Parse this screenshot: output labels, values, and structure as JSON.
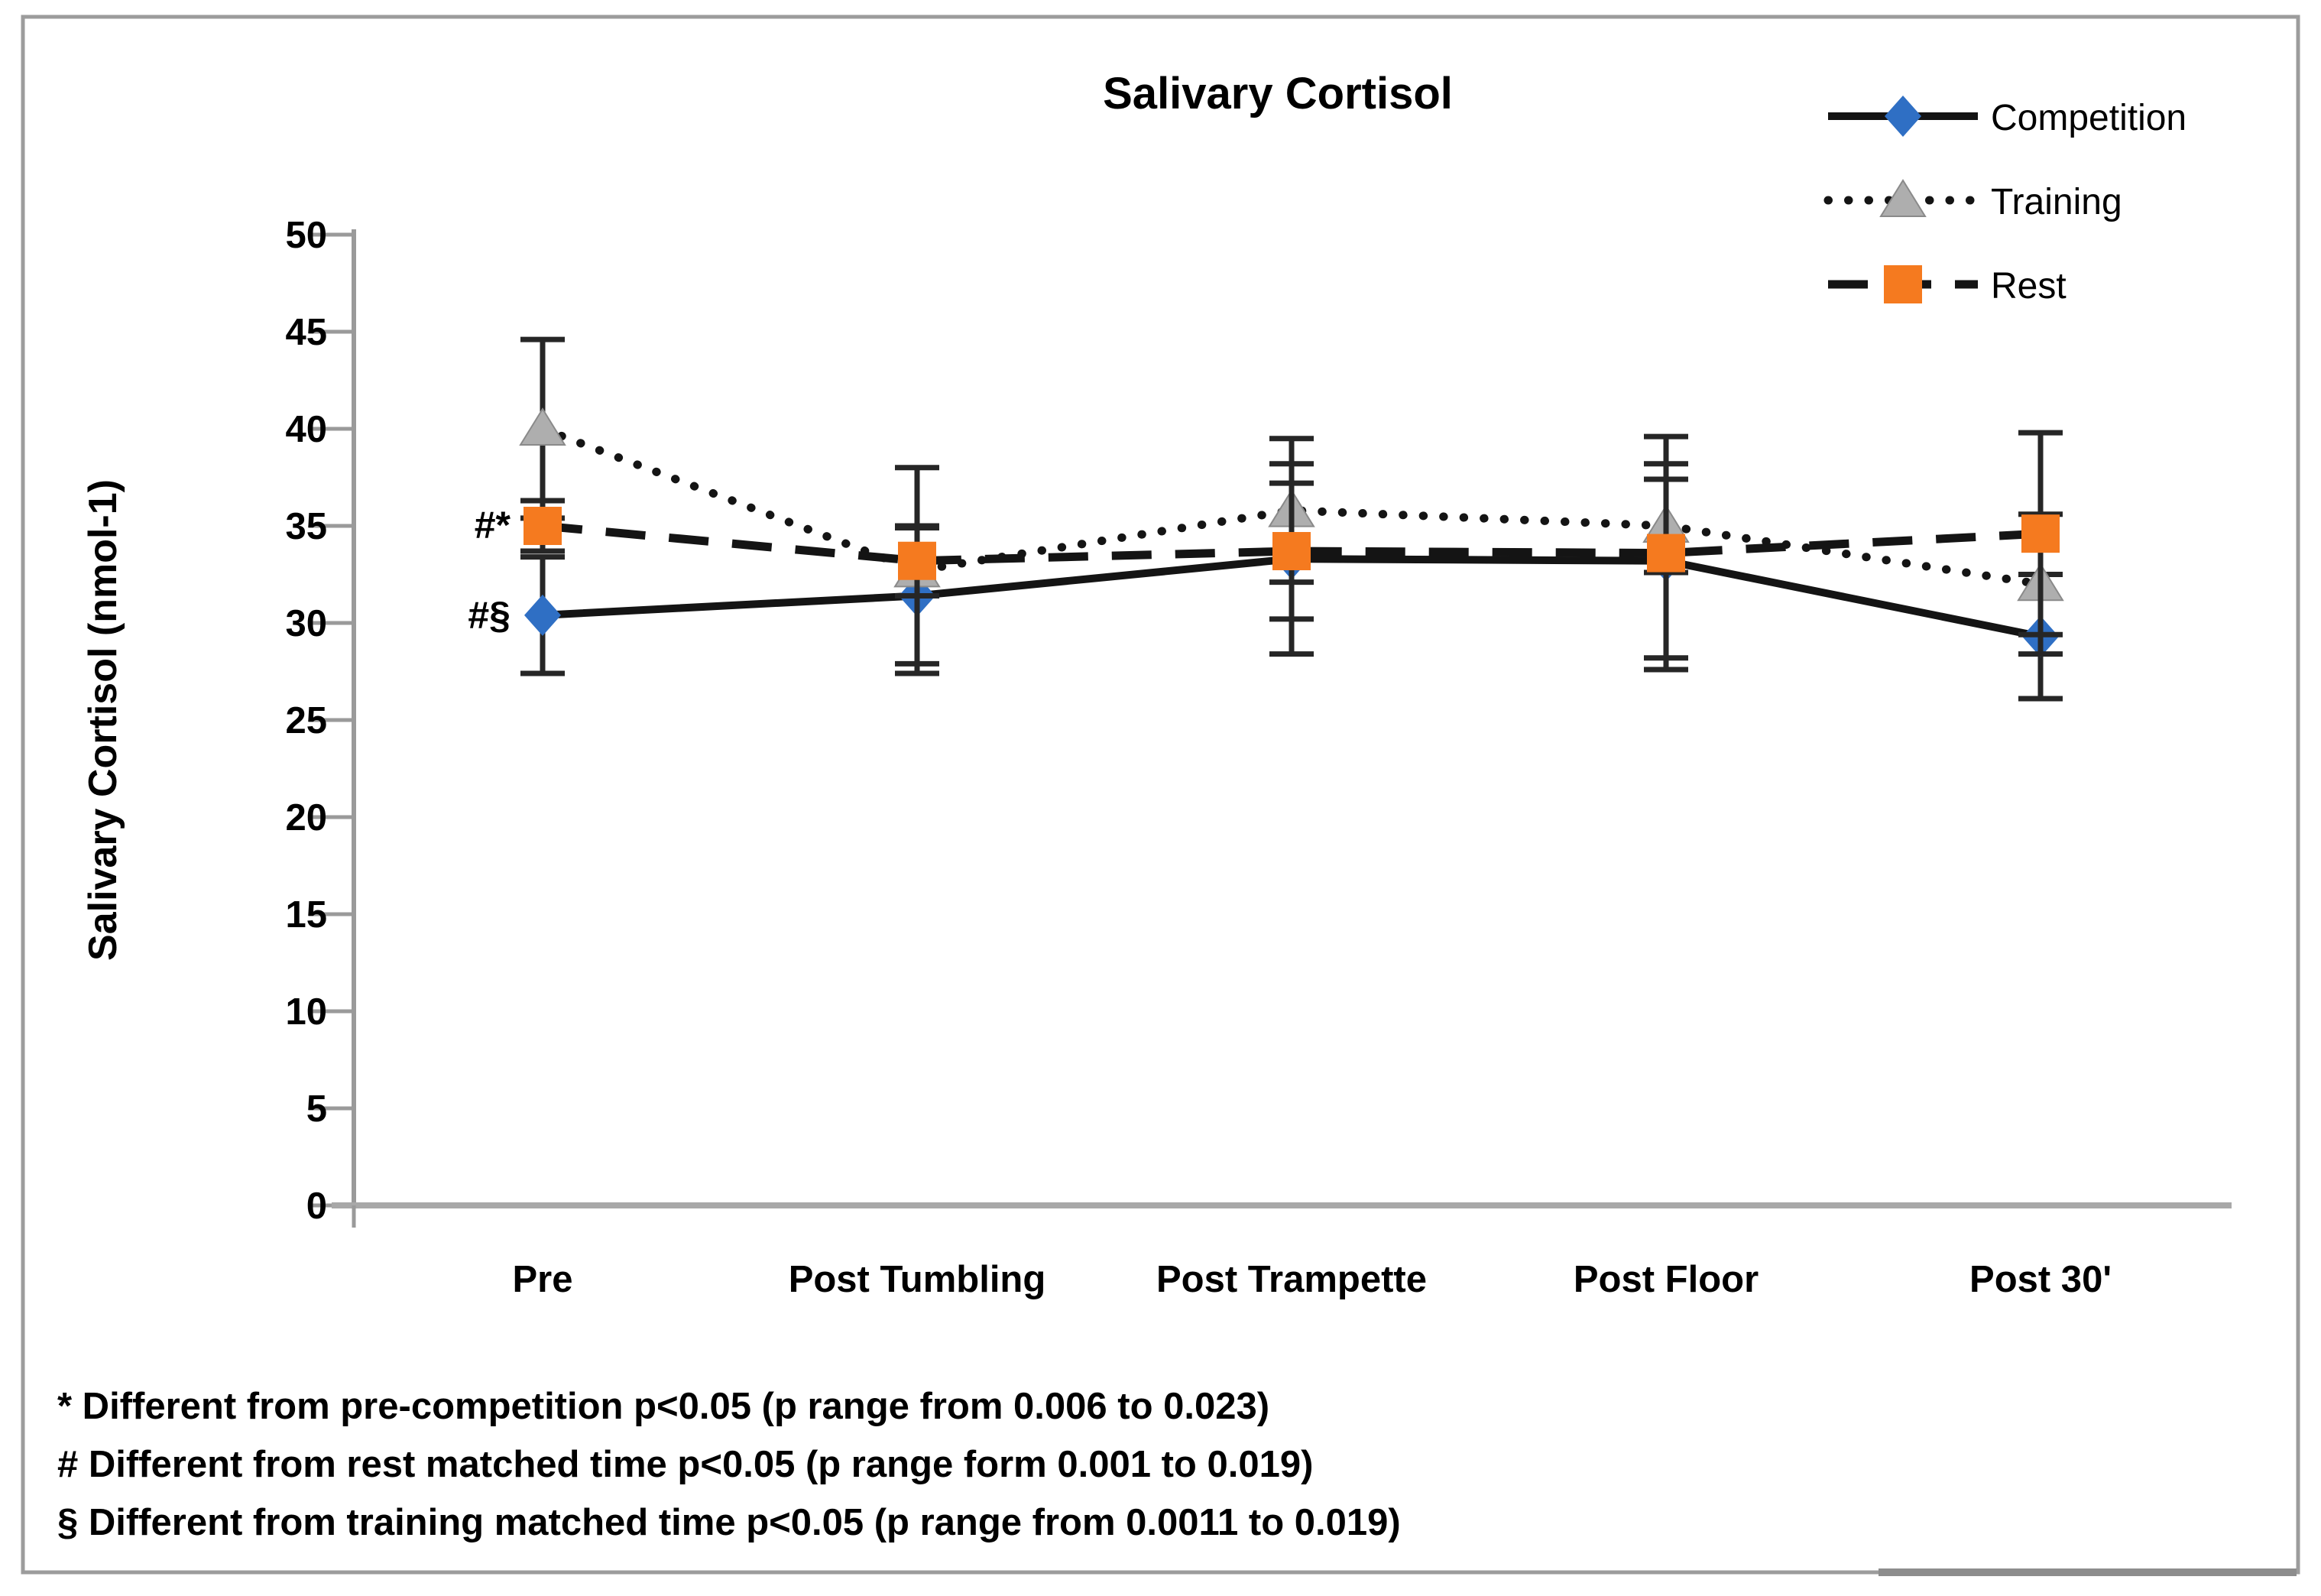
{
  "figure": {
    "title": "Salivary Cortisol",
    "y_axis_label": "Salivary Cortisol (nmol-1)"
  },
  "legend": {
    "position": "top-right",
    "items": [
      {
        "label": "Competition",
        "marker_icon": "blue-diamond-marker",
        "line_style": "solid"
      },
      {
        "label": "Training",
        "marker_icon": "gray-triangle-marker",
        "line_style": "dotted"
      },
      {
        "label": "Rest",
        "marker_icon": "orange-square-marker",
        "line_style": "dashed"
      }
    ]
  },
  "annotations": {
    "pre_rest": "#*",
    "pre_competition": "#§"
  },
  "footnotes": {
    "lines": [
      "* Different from pre-competition p<0.05 (p range from 0.006 to 0.023)",
      "# Different from rest matched time p<0.05 (p range form 0.001 to 0.019)",
      "§ Different from training matched time p<0.05 (p range from 0.0011 to  0.019)"
    ]
  },
  "chart_data": {
    "type": "line",
    "title": "Salivary Cortisol",
    "xlabel": "",
    "ylabel": "Salivary Cortisol (nmol-1)",
    "ylim": [
      0,
      50
    ],
    "ytick_step": 5,
    "y_ticks": [
      0,
      5,
      10,
      15,
      20,
      25,
      30,
      35,
      40,
      45,
      50
    ],
    "grid": false,
    "legend_position": "top-right",
    "categories": [
      "Pre",
      "Post Tumbling",
      "Post Trampette",
      "Post Floor",
      "Post 30'"
    ],
    "series": [
      {
        "name": "Competition",
        "line_style": "solid",
        "marker": "diamond",
        "marker_color": "#2f6fc4",
        "line_color": "#141414",
        "values": [
          30.4,
          31.4,
          33.3,
          33.2,
          29.3
        ],
        "error": [
          3.0,
          3.5,
          4.9,
          5.0,
          3.2
        ]
      },
      {
        "name": "Training",
        "line_style": "dotted",
        "marker": "triangle",
        "marker_color": "#aeaeae",
        "line_color": "#141414",
        "values": [
          40.0,
          32.7,
          35.8,
          35.0,
          32.0
        ],
        "error": [
          4.6,
          5.3,
          3.7,
          2.4,
          3.6
        ]
      },
      {
        "name": "Rest",
        "line_style": "dashed",
        "marker": "square",
        "marker_color": "#f57a1f",
        "line_color": "#141414",
        "values": [
          35.0,
          33.2,
          33.7,
          33.6,
          34.6
        ],
        "error": [
          1.3,
          1.8,
          3.5,
          6.0,
          5.2
        ]
      }
    ],
    "point_annotations": [
      {
        "text": "#*",
        "category": "Pre",
        "series": "Rest",
        "value": 35.0
      },
      {
        "text": "#§",
        "category": "Pre",
        "series": "Competition",
        "value": 30.4
      }
    ]
  },
  "colors": {
    "axis": "#9a9a9a",
    "x_axis": "#a8a8a8",
    "error_bar": "#262626",
    "series_line": "#141414",
    "border": "#9c9c9c",
    "competition_marker": "#2f6fc4",
    "training_marker": "#aeaeae",
    "rest_marker": "#f57a1f"
  }
}
